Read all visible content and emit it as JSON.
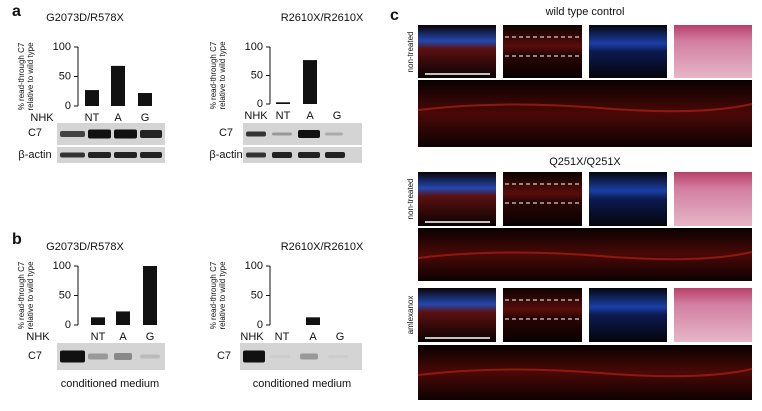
{
  "panel_labels": [
    "a",
    "b",
    "c"
  ],
  "chart_data": [
    {
      "type": "bar",
      "title": "G2073D/R578X",
      "y_label": [
        "% read-through C7",
        "relative to wild type"
      ],
      "categories": [
        "NHK",
        "NT",
        "A",
        "G"
      ],
      "values": [
        null,
        27,
        68,
        22
      ],
      "color": "#111111",
      "ylim": [
        0,
        100
      ],
      "yticks": [
        0,
        50,
        100
      ]
    },
    {
      "type": "bar",
      "title": "R2610X/R2610X",
      "y_label": [
        "% read-through C7",
        "relative to wild type"
      ],
      "categories": [
        "NHK",
        "NT",
        "A",
        "G"
      ],
      "values": [
        null,
        3,
        77,
        0
      ],
      "color": "#111111",
      "ylim": [
        0,
        100
      ],
      "yticks": [
        0,
        50,
        100
      ]
    },
    {
      "type": "bar",
      "title": "G2073D/R578X",
      "y_label": [
        "% read-through C7",
        "relative to wild type"
      ],
      "categories": [
        "NHK",
        "NT",
        "A",
        "G"
      ],
      "values": [
        null,
        13,
        23,
        100
      ],
      "color": "#111111",
      "ylim": [
        0,
        100
      ],
      "yticks": [
        0,
        50,
        100
      ]
    },
    {
      "type": "bar",
      "title": "R2610X/R2610X",
      "y_label": [
        "% read-through C7",
        "relative to wild type"
      ],
      "categories": [
        "NHK",
        "NT",
        "A",
        "G"
      ],
      "values": [
        null,
        0,
        13,
        0
      ],
      "color": "#111111",
      "ylim": [
        0,
        100
      ],
      "yticks": [
        0,
        50,
        100
      ]
    }
  ],
  "blot_labels": [
    "C7",
    "β-actin",
    "C7",
    "β-actin",
    "C7",
    "C7"
  ],
  "captions": [
    "conditioned medium",
    "conditioned medium"
  ],
  "panel_c": {
    "groups": [
      {
        "title": "wild type control",
        "rows": [
          "non-treated"
        ]
      },
      {
        "title": "Q251X/Q251X",
        "rows": [
          "non-treated",
          "amlexanox"
        ]
      }
    ]
  }
}
